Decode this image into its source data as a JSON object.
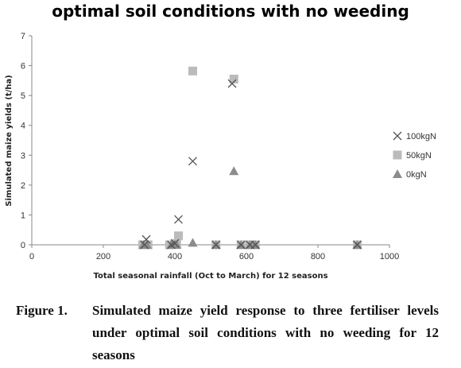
{
  "chart_data": {
    "type": "scatter",
    "title": "optimal soil conditions with no weeding",
    "xlabel": "Total seasonal rainfall (Oct to March) for 12 seasons",
    "ylabel": "Simulated maize yields (t/ha)",
    "xlim": [
      0,
      1000
    ],
    "ylim": [
      0,
      7
    ],
    "xticks": [
      0,
      200,
      400,
      600,
      800,
      1000
    ],
    "yticks": [
      0,
      1,
      2,
      3,
      4,
      5,
      6,
      7
    ],
    "grid": false,
    "legend_position": "right",
    "series": [
      {
        "name": "100kgN",
        "marker": "x",
        "color": "#555555",
        "x": [
          320,
          400,
          410,
          450,
          560,
          315,
          390,
          515,
          585,
          610,
          625,
          910
        ],
        "y": [
          0.18,
          0.05,
          0.85,
          2.8,
          5.4,
          0,
          0,
          0,
          0,
          0,
          0,
          0
        ]
      },
      {
        "name": "50kgN",
        "marker": "square",
        "color": "#bbbbbb",
        "x": [
          310,
          325,
          385,
          405,
          410,
          450,
          515,
          565,
          585,
          610,
          625,
          910
        ],
        "y": [
          0,
          0,
          0,
          0.05,
          0.3,
          5.82,
          0,
          5.55,
          0,
          0,
          0,
          0
        ]
      },
      {
        "name": "0kgN",
        "marker": "triangle",
        "color": "#8c8c8c",
        "x": [
          312,
          322,
          390,
          405,
          450,
          515,
          565,
          585,
          610,
          625,
          910,
          395
        ],
        "y": [
          0,
          0,
          0,
          0,
          0.07,
          0,
          2.47,
          0,
          0,
          0,
          0,
          0
        ]
      }
    ]
  },
  "caption": {
    "label": "Figure 1.",
    "text": "Simulated maize yield response to three fertiliser levels under optimal soil conditions with no weeding for 12 seasons"
  }
}
